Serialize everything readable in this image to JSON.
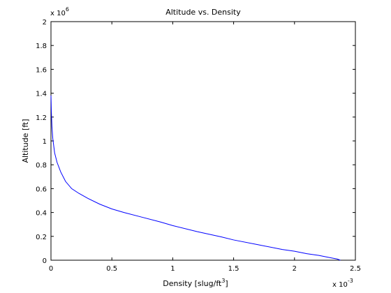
{
  "chart_data": {
    "type": "line",
    "title": "Altitude vs. Density",
    "xlabel": "Density [slug/ft",
    "xlabel_sup": "3",
    "xlabel_suffix": "]",
    "ylabel": "Altitude [ft]",
    "x_exponent_base": "x 10",
    "x_exponent_power": "-3",
    "y_exponent_base": "x 10",
    "y_exponent_power": "6",
    "xlim": [
      0,
      2.5
    ],
    "ylim": [
      0,
      2
    ],
    "xticks": [
      0,
      0.5,
      1,
      1.5,
      2,
      2.5
    ],
    "xtick_labels": [
      "0",
      "0.5",
      "1",
      "1.5",
      "2",
      "2.5"
    ],
    "yticks": [
      0,
      0.2,
      0.4,
      0.6,
      0.8,
      1,
      1.2,
      1.4,
      1.6,
      1.8,
      2
    ],
    "ytick_labels": [
      "0",
      "0.2",
      "0.4",
      "0.6",
      "0.8",
      "1",
      "1.2",
      "1.4",
      "1.6",
      "1.8",
      "2"
    ],
    "grid": false,
    "line_color": "#0000ff",
    "series": [
      {
        "x": [
          0.0001,
          0.003,
          0.008,
          0.015,
          0.03,
          0.05,
          0.08,
          0.12,
          0.17,
          0.23,
          0.3,
          0.4,
          0.5,
          0.6,
          0.75,
          0.9,
          1.0,
          1.2,
          1.4,
          1.5,
          1.7,
          1.9,
          2.0,
          2.1,
          2.2,
          2.3,
          2.35,
          2.377
        ],
        "y": [
          1.38,
          1.25,
          1.12,
          1.02,
          0.9,
          0.82,
          0.74,
          0.66,
          0.6,
          0.56,
          0.52,
          0.47,
          0.43,
          0.4,
          0.36,
          0.32,
          0.29,
          0.24,
          0.195,
          0.17,
          0.13,
          0.09,
          0.075,
          0.055,
          0.04,
          0.02,
          0.01,
          0.0
        ]
      }
    ]
  }
}
